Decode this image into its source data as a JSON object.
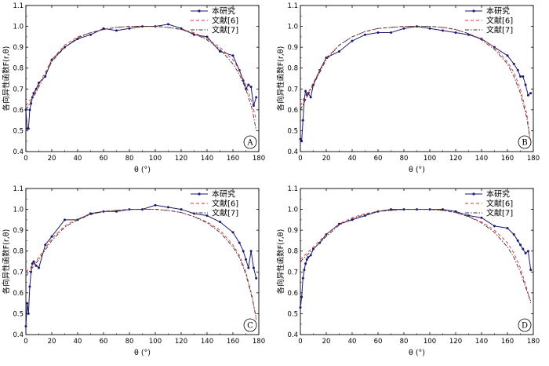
{
  "chart_data": [
    {
      "type": "line",
      "panel_label": "A",
      "xlabel": "θ (°)",
      "ylabel": "各向异性函数F(r,θ)",
      "xlim": [
        0,
        180
      ],
      "ylim": [
        0.4,
        1.1
      ],
      "xticks": [
        0,
        20,
        40,
        60,
        80,
        100,
        120,
        140,
        160,
        180
      ],
      "yticks": [
        0.4,
        0.5,
        0.6,
        0.7,
        0.8,
        0.9,
        1.0,
        1.1
      ],
      "grid": false,
      "legend_position": "top-right",
      "series": [
        {
          "name": "本研究",
          "color": "#1a1a6e",
          "style": "solid-markers",
          "x": [
            0,
            1,
            2,
            3,
            4,
            5,
            6,
            8,
            10,
            15,
            20,
            30,
            40,
            50,
            60,
            70,
            80,
            90,
            100,
            110,
            120,
            130,
            140,
            150,
            160,
            165,
            168,
            170,
            172,
            174,
            176,
            178
          ],
          "y": [
            0.6,
            0.51,
            0.51,
            0.6,
            0.63,
            0.66,
            0.68,
            0.7,
            0.73,
            0.76,
            0.84,
            0.9,
            0.94,
            0.96,
            0.99,
            0.98,
            0.99,
            1.0,
            1.0,
            1.01,
            0.99,
            0.96,
            0.95,
            0.88,
            0.86,
            0.79,
            0.74,
            0.7,
            0.72,
            0.71,
            0.62,
            0.66
          ]
        },
        {
          "name": "文献[6]",
          "color": "#e03030",
          "style": "dashed",
          "x": [
            0,
            5,
            10,
            20,
            30,
            40,
            50,
            60,
            70,
            80,
            90,
            100,
            110,
            120,
            130,
            140,
            150,
            160,
            165,
            170,
            175,
            178
          ],
          "y": [
            0.62,
            0.66,
            0.72,
            0.84,
            0.91,
            0.95,
            0.97,
            0.985,
            0.995,
            1.0,
            1.0,
            1.0,
            0.995,
            0.985,
            0.97,
            0.94,
            0.9,
            0.84,
            0.79,
            0.72,
            0.63,
            0.55
          ]
        },
        {
          "name": "文献[7]",
          "color": "#333333",
          "style": "dash-dot",
          "x": [
            0,
            5,
            10,
            20,
            30,
            40,
            50,
            60,
            70,
            80,
            90,
            100,
            110,
            120,
            130,
            140,
            150,
            160,
            165,
            170,
            175,
            178
          ],
          "y": [
            0.6,
            0.65,
            0.71,
            0.83,
            0.9,
            0.945,
            0.97,
            0.985,
            0.995,
            1.0,
            1.0,
            1.0,
            0.995,
            0.985,
            0.965,
            0.935,
            0.89,
            0.82,
            0.77,
            0.7,
            0.6,
            0.5
          ]
        }
      ]
    },
    {
      "type": "line",
      "panel_label": "B",
      "xlabel": "θ (°)",
      "ylabel": "各向异性函数F(r,θ)",
      "xlim": [
        0,
        180
      ],
      "ylim": [
        0.4,
        1.1
      ],
      "xticks": [
        0,
        20,
        40,
        60,
        80,
        100,
        120,
        140,
        160,
        180
      ],
      "yticks": [
        0.4,
        0.5,
        0.6,
        0.7,
        0.8,
        0.9,
        1.0,
        1.1
      ],
      "grid": false,
      "legend_position": "top-right",
      "series": [
        {
          "name": "本研究",
          "color": "#1a1a6e",
          "style": "solid-markers",
          "x": [
            0,
            1,
            2,
            3,
            4,
            5,
            6,
            8,
            10,
            15,
            20,
            30,
            40,
            50,
            60,
            70,
            80,
            90,
            100,
            110,
            120,
            130,
            140,
            150,
            160,
            165,
            168,
            170,
            172,
            174,
            176,
            178
          ],
          "y": [
            0.46,
            0.45,
            0.55,
            0.65,
            0.69,
            0.67,
            0.68,
            0.66,
            0.72,
            0.79,
            0.85,
            0.88,
            0.93,
            0.96,
            0.97,
            0.97,
            0.99,
            1.0,
            0.99,
            0.98,
            0.97,
            0.96,
            0.94,
            0.9,
            0.86,
            0.82,
            0.79,
            0.76,
            0.76,
            0.72,
            0.67,
            0.68
          ]
        },
        {
          "name": "文献[6]",
          "color": "#e03030",
          "style": "dashed",
          "x": [
            0,
            5,
            10,
            20,
            30,
            40,
            50,
            60,
            70,
            80,
            90,
            100,
            110,
            120,
            130,
            140,
            150,
            160,
            165,
            170,
            175,
            178
          ],
          "y": [
            0.62,
            0.67,
            0.73,
            0.85,
            0.91,
            0.95,
            0.975,
            0.99,
            0.995,
            1.0,
            1.0,
            1.0,
            0.995,
            0.985,
            0.965,
            0.94,
            0.9,
            0.83,
            0.78,
            0.7,
            0.58,
            0.43
          ]
        },
        {
          "name": "文献[7]",
          "color": "#333333",
          "style": "dash-dot",
          "x": [
            0,
            5,
            10,
            20,
            30,
            40,
            50,
            60,
            70,
            80,
            90,
            100,
            110,
            120,
            130,
            140,
            150,
            160,
            165,
            170,
            175,
            178
          ],
          "y": [
            0.6,
            0.66,
            0.72,
            0.84,
            0.91,
            0.95,
            0.975,
            0.99,
            0.995,
            1.0,
            1.0,
            1.0,
            0.995,
            0.985,
            0.965,
            0.935,
            0.89,
            0.82,
            0.76,
            0.68,
            0.56,
            0.44
          ]
        }
      ]
    },
    {
      "type": "line",
      "panel_label": "C",
      "xlabel": "θ (°)",
      "ylabel": "各向异性函数F(r,θ)",
      "xlim": [
        0,
        180
      ],
      "ylim": [
        0.4,
        1.1
      ],
      "xticks": [
        0,
        20,
        40,
        60,
        80,
        100,
        120,
        140,
        160,
        180
      ],
      "yticks": [
        0.4,
        0.5,
        0.6,
        0.7,
        0.8,
        0.9,
        1.0,
        1.1
      ],
      "grid": false,
      "legend_position": "top-right",
      "series": [
        {
          "name": "本研究",
          "color": "#1a1a6e",
          "style": "solid-markers",
          "x": [
            0,
            1,
            2,
            3,
            4,
            5,
            6,
            8,
            10,
            15,
            20,
            30,
            40,
            50,
            60,
            70,
            80,
            90,
            100,
            110,
            120,
            130,
            140,
            150,
            160,
            165,
            168,
            170,
            172,
            174,
            176,
            178
          ],
          "y": [
            0.44,
            0.55,
            0.5,
            0.63,
            0.7,
            0.74,
            0.75,
            0.73,
            0.72,
            0.83,
            0.87,
            0.95,
            0.95,
            0.98,
            0.99,
            0.99,
            1.0,
            1.0,
            1.02,
            1.01,
            1.0,
            0.98,
            0.97,
            0.94,
            0.89,
            0.84,
            0.8,
            0.76,
            0.72,
            0.8,
            0.72,
            0.67
          ]
        },
        {
          "name": "文献[6]",
          "color": "#e03030",
          "style": "dashed",
          "x": [
            0,
            5,
            10,
            20,
            30,
            40,
            50,
            60,
            70,
            80,
            90,
            100,
            110,
            120,
            130,
            140,
            150,
            160,
            165,
            170,
            175,
            178
          ],
          "y": [
            0.7,
            0.73,
            0.77,
            0.86,
            0.92,
            0.955,
            0.975,
            0.99,
            0.995,
            1.0,
            1.0,
            1.0,
            0.995,
            0.985,
            0.965,
            0.94,
            0.9,
            0.83,
            0.78,
            0.7,
            0.58,
            0.47
          ]
        },
        {
          "name": "文献[7]",
          "color": "#333333",
          "style": "dash-dot",
          "x": [
            0,
            5,
            10,
            20,
            30,
            40,
            50,
            60,
            70,
            80,
            90,
            100,
            110,
            120,
            130,
            140,
            150,
            160,
            165,
            170,
            175,
            178
          ],
          "y": [
            0.68,
            0.72,
            0.76,
            0.85,
            0.915,
            0.95,
            0.975,
            0.99,
            0.995,
            1.0,
            1.0,
            1.0,
            0.995,
            0.985,
            0.965,
            0.935,
            0.89,
            0.82,
            0.77,
            0.69,
            0.57,
            0.48
          ]
        }
      ]
    },
    {
      "type": "line",
      "panel_label": "D",
      "xlabel": "θ (°)",
      "ylabel": "各向异性函数F(r,θ)",
      "xlim": [
        0,
        180
      ],
      "ylim": [
        0.4,
        1.1
      ],
      "xticks": [
        0,
        20,
        40,
        60,
        80,
        100,
        120,
        140,
        160,
        180
      ],
      "yticks": [
        0.4,
        0.5,
        0.6,
        0.7,
        0.8,
        0.9,
        1.0,
        1.1
      ],
      "grid": false,
      "legend_position": "top-right",
      "series": [
        {
          "name": "本研究",
          "color": "#1a1a6e",
          "style": "solid-markers",
          "x": [
            0,
            1,
            2,
            3,
            4,
            5,
            6,
            8,
            10,
            15,
            20,
            30,
            40,
            50,
            60,
            70,
            80,
            90,
            100,
            110,
            120,
            130,
            140,
            150,
            160,
            165,
            168,
            170,
            172,
            174,
            176,
            178
          ],
          "y": [
            0.53,
            0.58,
            0.67,
            0.71,
            0.74,
            0.76,
            0.77,
            0.78,
            0.81,
            0.84,
            0.88,
            0.93,
            0.95,
            0.97,
            0.99,
            1.0,
            1.0,
            1.0,
            1.0,
            1.0,
            0.99,
            0.97,
            0.96,
            0.92,
            0.91,
            0.88,
            0.85,
            0.83,
            0.81,
            0.79,
            0.8,
            0.71
          ]
        },
        {
          "name": "文献[6]",
          "color": "#e03030",
          "style": "dashed",
          "x": [
            0,
            5,
            10,
            20,
            30,
            40,
            50,
            60,
            70,
            80,
            90,
            100,
            110,
            120,
            130,
            140,
            150,
            160,
            165,
            170,
            175,
            178
          ],
          "y": [
            0.76,
            0.79,
            0.82,
            0.88,
            0.93,
            0.96,
            0.98,
            0.99,
            0.995,
            1.0,
            1.0,
            1.0,
            0.995,
            0.985,
            0.965,
            0.94,
            0.9,
            0.84,
            0.79,
            0.72,
            0.62,
            0.55
          ]
        },
        {
          "name": "文献[7]",
          "color": "#333333",
          "style": "dash-dot",
          "x": [
            0,
            5,
            10,
            20,
            30,
            40,
            50,
            60,
            70,
            80,
            90,
            100,
            110,
            120,
            130,
            140,
            150,
            160,
            165,
            170,
            175,
            178
          ],
          "y": [
            0.75,
            0.78,
            0.81,
            0.87,
            0.925,
            0.955,
            0.975,
            0.99,
            0.995,
            1.0,
            1.0,
            1.0,
            0.995,
            0.985,
            0.965,
            0.935,
            0.89,
            0.82,
            0.77,
            0.7,
            0.61,
            0.56
          ]
        }
      ]
    }
  ]
}
